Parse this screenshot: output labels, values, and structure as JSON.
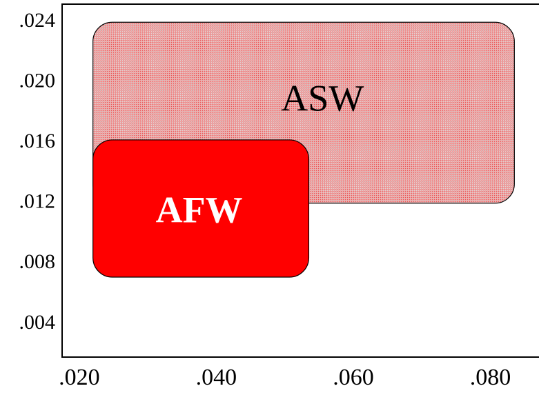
{
  "chart_data": {
    "type": "area",
    "title": "",
    "xlabel": "",
    "ylabel": "",
    "xlim": [
      0.0175,
      0.0877
    ],
    "ylim": [
      0.0018,
      0.0252
    ],
    "x_ticks": [
      {
        "value": 0.02,
        "label": ".020"
      },
      {
        "value": 0.04,
        "label": ".040"
      },
      {
        "value": 0.06,
        "label": ".060"
      },
      {
        "value": 0.08,
        "label": ".080"
      }
    ],
    "y_ticks": [
      {
        "value": 0.024,
        "label": ".024"
      },
      {
        "value": 0.02,
        "label": ".020"
      },
      {
        "value": 0.016,
        "label": ".016"
      },
      {
        "value": 0.012,
        "label": ".012"
      },
      {
        "value": 0.008,
        "label": ".008"
      },
      {
        "value": 0.004,
        "label": ".004"
      }
    ],
    "grid": false,
    "regions": [
      {
        "name": "ASW",
        "x_range": [
          0.022,
          0.0835
        ],
        "y_range": [
          0.012,
          0.024
        ],
        "fill": "#f08a8a",
        "pattern": "stipple",
        "label_color": "#000000",
        "label_weight": "normal",
        "label_pos": [
          0.0555,
          0.0187
        ]
      },
      {
        "name": "AFW",
        "x_range": [
          0.022,
          0.0535
        ],
        "y_range": [
          0.0071,
          0.0162
        ],
        "fill": "#ff0000",
        "pattern": "solid",
        "label_color": "#ffffff",
        "label_weight": "bold",
        "label_pos": [
          0.0375,
          0.0113
        ]
      }
    ]
  }
}
